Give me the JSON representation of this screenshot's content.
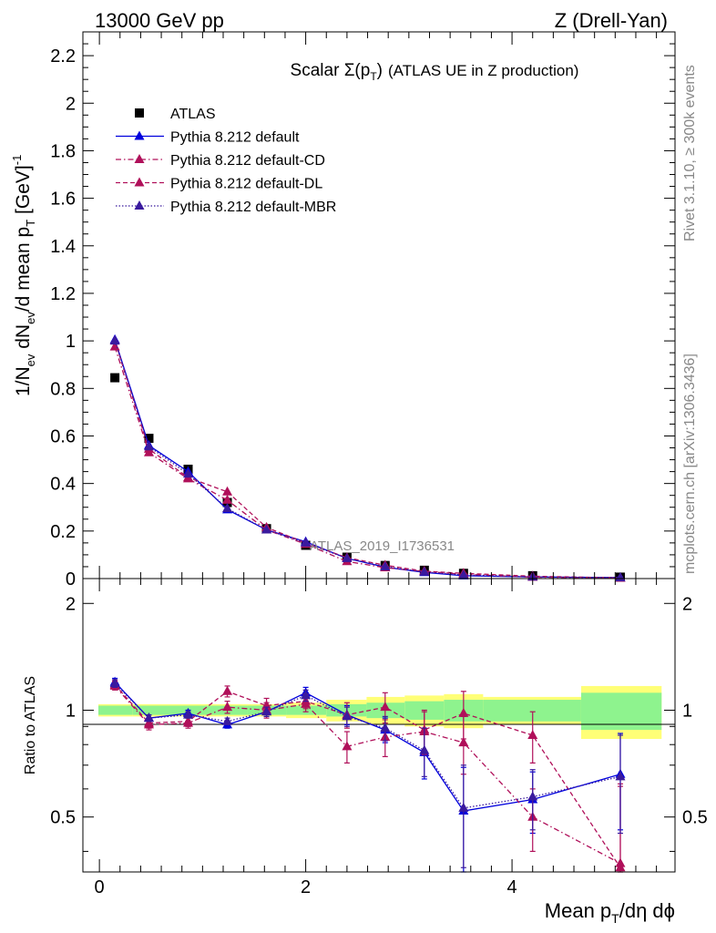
{
  "header": {
    "energy_label": "13000 GeV pp",
    "process_label": "Z (Drell-Yan)",
    "title_scalar": "Scalar ",
    "title_sigma": "Σ(p",
    "title_sigma_sub": "T",
    "title_sigma_close": ")",
    "title_rest": "(ATLAS UE in Z production)",
    "watermark": "ATLAS_2019_I1736531",
    "side_rivet": "Rivet 3.1.10, ≥ 300k events",
    "side_mcplots": "mcplots.cern.ch [arXiv:1306.3436]"
  },
  "axes": {
    "main_ylabel_parts": [
      "1/N",
      "ev",
      " dN",
      "ev",
      "/d mean p",
      "T",
      " [GeV]",
      "-1"
    ],
    "ratio_ylabel": "Ratio to ATLAS",
    "xlabel_main": "Mean p",
    "xlabel_sub": "T",
    "xlabel_rest": "/dη dϕ",
    "main_yticks": [
      "0",
      "0.2",
      "0.4",
      "0.6",
      "0.8",
      "1",
      "1.2",
      "1.4",
      "1.6",
      "1.8",
      "2",
      "2.2"
    ],
    "ratio_yticks": [
      "0.5",
      "1",
      "2"
    ],
    "xticks": [
      "0",
      "2",
      "4"
    ]
  },
  "legend": [
    {
      "label": "ATLAS",
      "color": "#000000",
      "marker": "square",
      "line": "none"
    },
    {
      "label": "Pythia 8.212 default",
      "color": "#0000dd",
      "marker": "triangle",
      "line": "solid"
    },
    {
      "label": "Pythia 8.212 default-CD",
      "color": "#b0105a",
      "marker": "triangle",
      "line": "dashdot"
    },
    {
      "label": "Pythia 8.212 default-DL",
      "color": "#b0105a",
      "marker": "triangle",
      "line": "dashed"
    },
    {
      "label": "Pythia 8.212 default-MBR",
      "color": "#3a1a9e",
      "marker": "triangle",
      "line": "dotted"
    }
  ],
  "chart_data": [
    {
      "type": "scatter",
      "panel": "main",
      "title": "Scalar Σ(pT) (ATLAS UE in Z production)",
      "xlabel": "Mean pT/dη dϕ",
      "ylabel": "1/Nev dNev/d mean pT [GeV]^-1",
      "xlim": [
        -0.16,
        5.58
      ],
      "ylim": [
        0,
        2.3
      ],
      "x": [
        0.15,
        0.48,
        0.86,
        1.24,
        1.62,
        2.0,
        2.4,
        2.77,
        3.15,
        3.53,
        4.2,
        5.05
      ],
      "x_bin_edges": [
        -0.01,
        0.32,
        0.67,
        1.05,
        1.43,
        1.81,
        2.2,
        2.59,
        2.96,
        3.34,
        3.72,
        4.67,
        5.45
      ],
      "series": [
        {
          "name": "ATLAS",
          "values": [
            0.845,
            0.59,
            0.46,
            0.32,
            0.21,
            0.14,
            0.09,
            0.055,
            0.035,
            0.022,
            0.012,
            0.006
          ]
        },
        {
          "name": "Pythia 8.212 default",
          "values": [
            1.005,
            0.56,
            0.45,
            0.29,
            0.205,
            0.155,
            0.085,
            0.048,
            0.026,
            0.012,
            0.007,
            0.004
          ]
        },
        {
          "name": "Pythia 8.212 default-CD",
          "values": [
            0.975,
            0.53,
            0.42,
            0.33,
            0.205,
            0.145,
            0.072,
            0.046,
            0.03,
            0.018,
            0.006,
            0.002
          ]
        },
        {
          "name": "Pythia 8.212 default-DL",
          "values": [
            1.0,
            0.545,
            0.425,
            0.365,
            0.215,
            0.15,
            0.088,
            0.056,
            0.031,
            0.022,
            0.01,
            0.003
          ]
        },
        {
          "name": "Pythia 8.212 default-MBR",
          "values": [
            1.0,
            0.555,
            0.44,
            0.295,
            0.205,
            0.15,
            0.085,
            0.05,
            0.028,
            0.015,
            0.007,
            0.004
          ]
        }
      ]
    },
    {
      "type": "scatter",
      "panel": "ratio",
      "ylabel": "Ratio to ATLAS",
      "ylim": [
        0.35,
        2.35
      ],
      "y_scale": "log",
      "x": [
        0.15,
        0.48,
        0.86,
        1.24,
        1.62,
        2.0,
        2.4,
        2.77,
        3.15,
        3.53,
        4.2,
        5.05
      ],
      "band_inner": [
        0.03,
        0.03,
        0.03,
        0.03,
        0.03,
        0.03,
        0.04,
        0.05,
        0.06,
        0.07,
        0.07,
        0.12
      ],
      "band_outer": [
        0.04,
        0.04,
        0.04,
        0.04,
        0.04,
        0.05,
        0.07,
        0.09,
        0.1,
        0.11,
        0.09,
        0.17
      ],
      "series": [
        {
          "name": "Pythia 8.212 default",
          "values": [
            1.2,
            0.95,
            0.98,
            0.91,
            0.99,
            1.12,
            0.97,
            0.88,
            0.76,
            0.52,
            0.56,
            0.66
          ],
          "err": [
            0.03,
            0.02,
            0.02,
            0.02,
            0.03,
            0.04,
            0.06,
            0.07,
            0.12,
            0.17,
            0.11,
            0.2
          ]
        },
        {
          "name": "Pythia 8.212 default-CD",
          "values": [
            1.17,
            0.91,
            0.92,
            1.02,
            1.0,
            1.04,
            0.79,
            0.84,
            0.87,
            0.81,
            0.5,
            0.37
          ],
          "err": [
            0.03,
            0.03,
            0.03,
            0.04,
            0.05,
            0.05,
            0.08,
            0.1,
            0.12,
            0.15,
            0.1,
            0.25
          ]
        },
        {
          "name": "Pythia 8.212 default-DL",
          "values": [
            1.18,
            0.92,
            0.93,
            1.13,
            1.03,
            1.06,
            0.97,
            1.02,
            0.88,
            0.98,
            0.85,
            0.36
          ],
          "err": [
            0.03,
            0.03,
            0.03,
            0.04,
            0.05,
            0.05,
            0.08,
            0.1,
            0.12,
            0.15,
            0.14,
            0.25
          ]
        },
        {
          "name": "Pythia 8.212 default-MBR",
          "values": [
            1.19,
            0.95,
            0.97,
            0.93,
            0.99,
            1.1,
            0.96,
            0.89,
            0.77,
            0.53,
            0.57,
            0.65
          ],
          "err": [
            0.03,
            0.02,
            0.02,
            0.02,
            0.03,
            0.04,
            0.06,
            0.07,
            0.12,
            0.17,
            0.11,
            0.2
          ]
        }
      ]
    }
  ]
}
